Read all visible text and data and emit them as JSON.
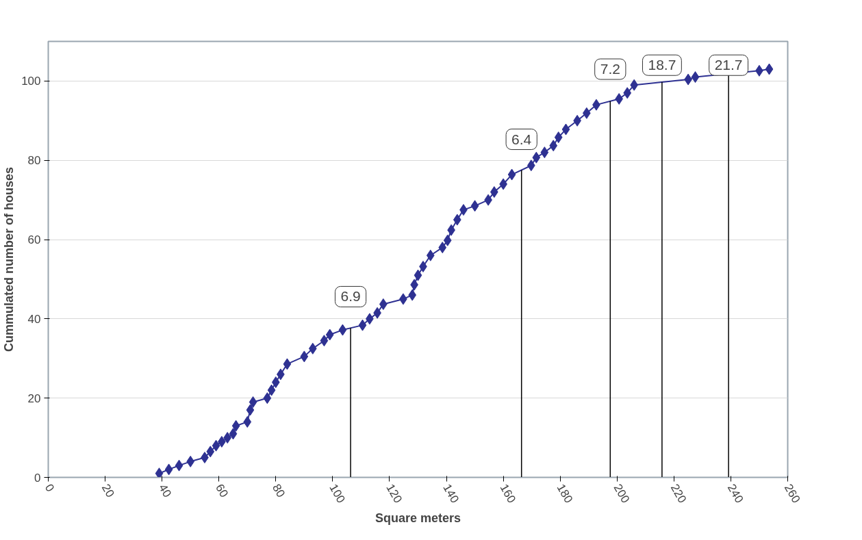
{
  "chart_data": {
    "type": "line",
    "xlabel": "Square meters",
    "ylabel": "Cummulated number of houses",
    "xlim": [
      0,
      260
    ],
    "ylim": [
      0,
      110
    ],
    "xticks": [
      0,
      20,
      40,
      60,
      80,
      100,
      120,
      140,
      160,
      180,
      200,
      220,
      240,
      260
    ],
    "yticks": [
      0,
      20,
      40,
      60,
      80,
      100
    ],
    "grid": "y",
    "marker": "diamond",
    "line_style": "solid",
    "series": [
      {
        "color": "#2e3192",
        "x": [
          39,
          42.4,
          46,
          50,
          55,
          57,
          59,
          61,
          63,
          65,
          66,
          70,
          71,
          72,
          77,
          78.5,
          80,
          81.7,
          84,
          90,
          93,
          97,
          99,
          103.5,
          110.5,
          113,
          115.7,
          117.8,
          124.8,
          128,
          128.7,
          130,
          131.8,
          134.4,
          138.6,
          140.4,
          141.7,
          143.8,
          146,
          150,
          154.7,
          156.8,
          160,
          163,
          169.8,
          171.6,
          174.5,
          177.6,
          179.4,
          182,
          186,
          189.3,
          192.7,
          200.7,
          203.6,
          206,
          225,
          227.5,
          250,
          253.5
        ],
        "values": [
          1,
          2,
          3,
          4,
          5,
          6.5,
          8,
          9,
          10,
          11,
          13,
          14,
          17,
          19,
          20,
          22,
          24,
          26,
          28.6,
          30.5,
          32.5,
          34.5,
          36,
          37.2,
          38.4,
          40,
          41.5,
          43.7,
          45,
          46,
          48.6,
          51,
          53.2,
          56,
          58,
          59.8,
          62.4,
          65,
          67.5,
          68.5,
          70,
          72,
          74,
          76.4,
          78.7,
          80.7,
          82,
          83.7,
          85.8,
          87.8,
          90,
          91.9,
          94,
          95.5,
          97,
          99,
          100.4,
          101,
          102.6,
          103
        ]
      }
    ],
    "ref_lines": [
      {
        "axis": "x",
        "value": 106.3,
        "color": "#000000"
      },
      {
        "axis": "x",
        "value": 166.4,
        "color": "#000000"
      },
      {
        "axis": "x",
        "value": 197.6,
        "color": "#000000"
      },
      {
        "axis": "x",
        "value": 215.8,
        "color": "#000000"
      },
      {
        "axis": "x",
        "value": 239.2,
        "color": "#000000"
      }
    ],
    "annotations": [
      {
        "text": "6.9",
        "x": 106.3,
        "y": 37.6
      },
      {
        "text": "6.4",
        "x": 166.4,
        "y": 77.3
      },
      {
        "text": "7.2",
        "x": 197.6,
        "y": 95
      },
      {
        "text": "18.7",
        "x": 215.8,
        "y": 99.7
      },
      {
        "text": "21.7",
        "x": 239.2,
        "y": 101.9
      }
    ]
  }
}
